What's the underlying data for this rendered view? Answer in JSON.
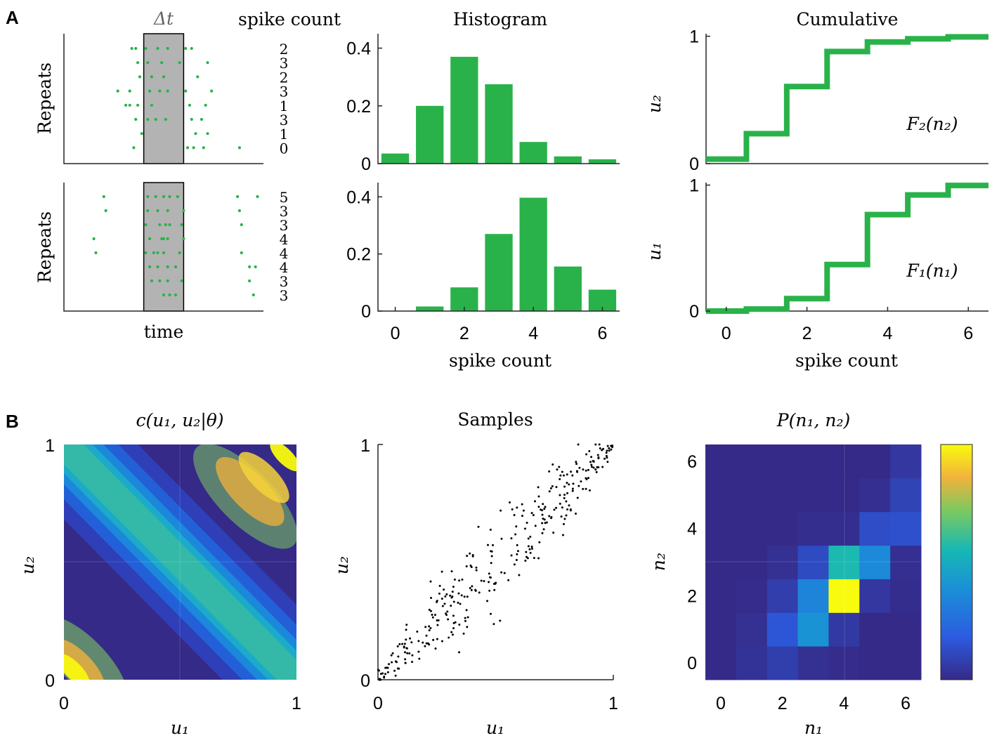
{
  "panel_labels": {
    "a": "A",
    "b": "B"
  },
  "colors": {
    "green": "#2ab24a",
    "shade": "#b3b3b3",
    "axis": "#262626",
    "sample": "#000000"
  },
  "chart_data": [
    {
      "id": "raster_top",
      "type": "scatter",
      "ylabel": "Repeats",
      "window_label": "Δt",
      "title": "spike count",
      "window": [
        0.4,
        0.6
      ],
      "xlim": [
        0,
        1
      ],
      "rows": [
        {
          "count": "2",
          "spikes": [
            0.34,
            0.36,
            0.41,
            0.47,
            0.52,
            0.61,
            0.64
          ]
        },
        {
          "count": "3",
          "spikes": [
            0.37,
            0.42,
            0.49,
            0.58,
            0.72
          ]
        },
        {
          "count": "2",
          "spikes": [
            0.38,
            0.44,
            0.5,
            0.67
          ]
        },
        {
          "count": "3",
          "spikes": [
            0.27,
            0.33,
            0.43,
            0.48,
            0.52,
            0.61,
            0.74
          ]
        },
        {
          "count": "1",
          "spikes": [
            0.31,
            0.33,
            0.37,
            0.44,
            0.63,
            0.71
          ]
        },
        {
          "count": "3",
          "spikes": [
            0.36,
            0.42,
            0.46,
            0.51,
            0.64,
            0.69
          ]
        },
        {
          "count": "1",
          "spikes": [
            0.39,
            0.66,
            0.72
          ]
        },
        {
          "count": "0",
          "spikes": [
            0.35,
            0.62,
            0.65,
            0.7,
            0.88
          ]
        }
      ]
    },
    {
      "id": "raster_bottom",
      "type": "scatter",
      "xlabel": "time",
      "ylabel": "Repeats",
      "window": [
        0.4,
        0.6
      ],
      "xlim": [
        0,
        1
      ],
      "rows": [
        {
          "count": "5",
          "spikes": [
            0.2,
            0.42,
            0.46,
            0.5,
            0.53,
            0.57,
            0.87,
            0.97
          ]
        },
        {
          "count": "3",
          "spikes": [
            0.21,
            0.42,
            0.47,
            0.52,
            0.6,
            0.88
          ]
        },
        {
          "count": "3",
          "spikes": [
            0.41,
            0.48,
            0.51,
            0.53,
            0.59,
            0.89
          ]
        },
        {
          "count": "4",
          "spikes": [
            0.15,
            0.43,
            0.49,
            0.5,
            0.52,
            0.6
          ]
        },
        {
          "count": "4",
          "spikes": [
            0.16,
            0.41,
            0.45,
            0.47,
            0.5,
            0.58,
            0.89
          ]
        },
        {
          "count": "4",
          "spikes": [
            0.43,
            0.47,
            0.52,
            0.56,
            0.93,
            0.96
          ]
        },
        {
          "count": "3",
          "spikes": [
            0.44,
            0.48,
            0.52,
            0.59,
            0.93
          ]
        },
        {
          "count": "3",
          "spikes": [
            0.5,
            0.53,
            0.56,
            0.95
          ]
        }
      ]
    },
    {
      "id": "hist_top",
      "type": "bar",
      "title": "Histogram",
      "categories": [
        0,
        1,
        2,
        3,
        4,
        5,
        6
      ],
      "values": [
        0.035,
        0.2,
        0.37,
        0.275,
        0.075,
        0.025,
        0.015
      ],
      "xlim": [
        -0.5,
        6.5
      ],
      "ylim": [
        0,
        0.45
      ],
      "yticks": [
        "0",
        "0.2",
        "0.4"
      ]
    },
    {
      "id": "hist_bottom",
      "type": "bar",
      "xlabel": "spike count",
      "categories": [
        0,
        1,
        2,
        3,
        4,
        5,
        6
      ],
      "values": [
        0.0,
        0.016,
        0.083,
        0.27,
        0.397,
        0.156,
        0.075
      ],
      "xlim": [
        -0.5,
        6.5
      ],
      "ylim": [
        0,
        0.45
      ],
      "xticks": [
        "0",
        "2",
        "4",
        "6"
      ],
      "yticks": [
        "0",
        "0.2",
        "0.4"
      ]
    },
    {
      "id": "cdf_top",
      "type": "line",
      "title": "Cumulative",
      "ylabel": "u₂",
      "annotation": "F₂(n₂)",
      "x": [
        -0.5,
        0,
        1,
        2,
        3,
        4,
        5,
        6,
        6.5
      ],
      "y": [
        0.035,
        0.035,
        0.235,
        0.605,
        0.88,
        0.955,
        0.98,
        0.995,
        0.995
      ],
      "xlim": [
        -0.5,
        6.5
      ],
      "ylim": [
        0,
        1.02
      ],
      "yticks": [
        "0",
        "1"
      ]
    },
    {
      "id": "cdf_bottom",
      "type": "line",
      "xlabel": "spike count",
      "ylabel": "u₁",
      "annotation": "F₁(n₁)",
      "x": [
        -0.5,
        0,
        1,
        2,
        3,
        4,
        5,
        6,
        6.5
      ],
      "y": [
        0.0,
        0.0,
        0.016,
        0.099,
        0.369,
        0.766,
        0.922,
        0.997,
        0.997
      ],
      "xlim": [
        -0.5,
        6.5
      ],
      "ylim": [
        0,
        1.02
      ],
      "xticks": [
        "0",
        "2",
        "4",
        "6"
      ],
      "yticks": [
        "0",
        "1"
      ]
    },
    {
      "id": "copula_density",
      "type": "heatmap",
      "title": "c(u₁, u₂|θ)",
      "xlabel": "u₁",
      "ylabel": "u₂",
      "xlim": [
        0,
        1
      ],
      "ylim": [
        0,
        1
      ],
      "xticks": [
        "0",
        "1"
      ],
      "yticks": [
        "0",
        "1"
      ]
    },
    {
      "id": "samples",
      "type": "scatter",
      "title": "Samples",
      "xlabel": "u₁",
      "ylabel": "u₂",
      "xlim": [
        0,
        1
      ],
      "ylim": [
        0,
        1
      ],
      "xticks": [
        "0",
        "1"
      ],
      "yticks": [
        "0",
        "1"
      ],
      "n_points": 320
    },
    {
      "id": "joint_pmf",
      "type": "heatmap",
      "title": "P(n₁, n₂)",
      "xlabel": "n₁",
      "ylabel": "n₂",
      "x": [
        0,
        1,
        2,
        3,
        4,
        5,
        6
      ],
      "y": [
        0,
        1,
        2,
        3,
        4,
        5,
        6
      ],
      "xlim": [
        -0.5,
        6.5
      ],
      "ylim": [
        -0.5,
        6.5
      ],
      "xticks": [
        "0",
        "2",
        "4",
        "6"
      ],
      "yticks": [
        "0",
        "2",
        "4",
        "6"
      ],
      "values": [
        [
          0.0,
          0.008,
          0.019,
          0.006,
          0.002,
          0.0,
          0.0
        ],
        [
          0.0,
          0.006,
          0.04,
          0.1,
          0.014,
          0.0,
          0.0
        ],
        [
          0.0,
          0.002,
          0.018,
          0.085,
          0.25,
          0.012,
          0.003
        ],
        [
          0.0,
          0.0,
          0.006,
          0.03,
          0.14,
          0.09,
          0.005
        ],
        [
          0.0,
          0.0,
          0.0,
          0.004,
          0.004,
          0.032,
          0.035
        ],
        [
          0.0,
          0.0,
          0.0,
          0.0,
          0.0,
          0.005,
          0.024
        ],
        [
          0.0,
          0.0,
          0.0,
          0.0,
          0.0,
          0.0,
          0.012
        ]
      ]
    }
  ]
}
